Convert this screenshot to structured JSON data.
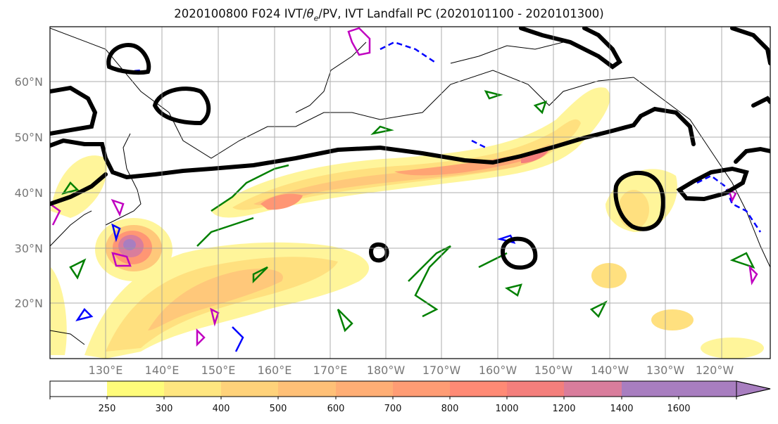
{
  "title_prefix": "2020100800 F024 IVT/",
  "title_theta": "θ",
  "title_sub": "e",
  "title_suffix": "/PV, IVT Landfall PC (2020101100 - 2020101300)",
  "lat_labels": [
    "60°N",
    "50°N",
    "40°N",
    "30°N",
    "20°N"
  ],
  "lon_labels": [
    "130°E",
    "140°E",
    "150°E",
    "160°E",
    "170°E",
    "180°W",
    "170°W",
    "160°W",
    "150°W",
    "140°W",
    "130°W",
    "120°W"
  ],
  "colorbar": {
    "tick_labels": [
      "250",
      "300",
      "400",
      "500",
      "600",
      "700",
      "800",
      "1000",
      "1200",
      "1400",
      "1600"
    ],
    "colors": [
      "#ffffff",
      "#fffc7a",
      "#ffe680",
      "#ffd27a",
      "#ffc077",
      "#ffae75",
      "#ff9c74",
      "#ff8a75",
      "#f47f7c",
      "#d97d9c",
      "#a87ec0"
    ]
  },
  "legend_colors": {
    "ivt_landfall_pc": "#000000",
    "theta_e": "#008000",
    "pv_blue": "#0000ff",
    "pv_magenta": "#c000c0"
  }
}
